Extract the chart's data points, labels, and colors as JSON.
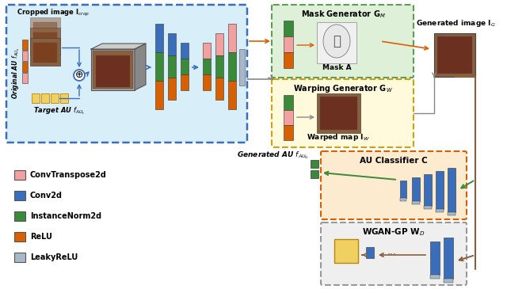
{
  "colors": {
    "pink": "#F2A0A0",
    "blue": "#3A6EBB",
    "green": "#3A8A3A",
    "orange": "#D96000",
    "lightgray": "#A8B8C8",
    "yellow": "#F0D060",
    "blue_bg": "#D8EEF8",
    "green_bg": "#DFF0D8",
    "yellow_bg": "#FFFADC",
    "orange_bg": "#FDEBD0",
    "gray_bg": "#EFEFEF",
    "brown": "#8B5E3C",
    "dark_brown": "#6B3A1F"
  },
  "legend_items": [
    {
      "label": "ConvTranspose2d",
      "color": "#F2A0A0"
    },
    {
      "label": "Conv2d",
      "color": "#3A6EBB"
    },
    {
      "label": "InstanceNorm2d",
      "color": "#3A8A3A"
    },
    {
      "label": "ReLU",
      "color": "#D96000"
    },
    {
      "label": "LeakyReLU",
      "color": "#A8B8C8"
    }
  ]
}
